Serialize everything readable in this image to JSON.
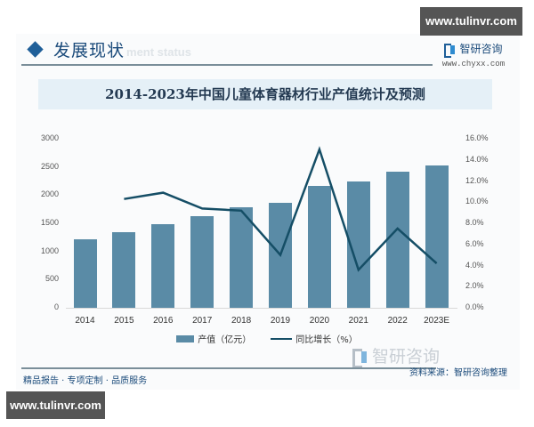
{
  "watermark": {
    "top": "www.tulinvr.com",
    "bottom": "www.tulinvr.com"
  },
  "header": {
    "section_title": "发展现状",
    "section_subtitle": "ment status",
    "brand_name": "智研咨询",
    "brand_url": "www.chyxx.com"
  },
  "footer": {
    "left": "精品报告 · 专项定制 · 品质服务",
    "source": "资料来源：智研咨询整理",
    "brand_big": "智研咨询"
  },
  "colors": {
    "bar": "#5a8ba6",
    "line": "#154e66",
    "title_band": "#e5f0f7",
    "accent": "#1f5f99"
  },
  "chart_data": {
    "type": "bar",
    "title": "2014-2023年中国儿童体育器材行业产值统计及预测",
    "categories": [
      "2014",
      "2015",
      "2016",
      "2017",
      "2018",
      "2019",
      "2020",
      "2021",
      "2022",
      "2023E"
    ],
    "series": [
      {
        "name": "产值（亿元）",
        "type": "bar",
        "axis": "left",
        "values": [
          1220,
          1340,
          1480,
          1630,
          1790,
          1870,
          2160,
          2240,
          2420,
          2530
        ]
      },
      {
        "name": "同比增长（%）",
        "type": "line",
        "axis": "right",
        "values": [
          null,
          10.3,
          10.9,
          9.4,
          9.2,
          5.0,
          15.0,
          3.6,
          7.5,
          4.2
        ]
      }
    ],
    "xlabel": "",
    "ylabel_left": "",
    "ylabel_right": "",
    "ylim_left": [
      0,
      3000
    ],
    "ylim_right": [
      0,
      16
    ],
    "yticks_left": [
      "0",
      "500",
      "1000",
      "1500",
      "2000",
      "2500",
      "3000"
    ],
    "yticks_right": [
      "0.0%",
      "2.0%",
      "4.0%",
      "6.0%",
      "8.0%",
      "10.0%",
      "12.0%",
      "14.0%",
      "16.0%"
    ],
    "grid": false,
    "legend_position": "bottom",
    "legend": [
      "产值（亿元）",
      "同比增长（%）"
    ]
  }
}
